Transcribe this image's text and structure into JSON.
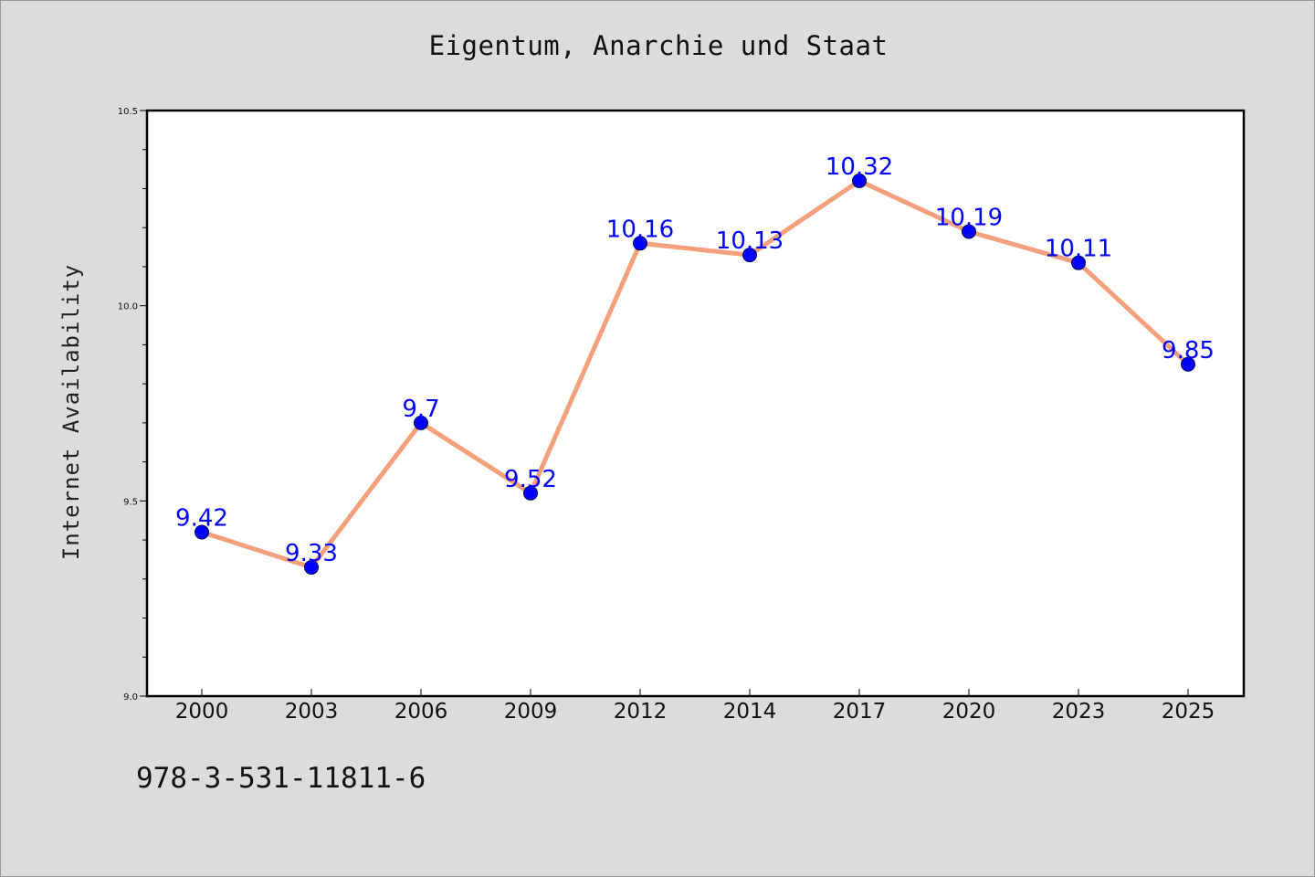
{
  "chart_data": {
    "type": "line",
    "title": "Eigentum, Anarchie und Staat",
    "ylabel": "Internet Availability",
    "xlabel": "",
    "categories": [
      "2000",
      "2003",
      "2006",
      "2009",
      "2012",
      "2014",
      "2017",
      "2020",
      "2023",
      "2025"
    ],
    "series": [
      {
        "values": [
          9.42,
          9.33,
          9.7,
          9.52,
          10.16,
          10.13,
          10.32,
          10.19,
          10.11,
          9.85
        ],
        "data_labels": [
          "9.42",
          "9.33",
          "9.7",
          "9.52",
          "10.16",
          "10.13",
          "10.32",
          "10.19",
          "10.11",
          "9.85"
        ]
      }
    ],
    "ylim": [
      9.0,
      10.5
    ],
    "yticks": [
      9.0,
      9.5,
      10.0,
      10.5
    ],
    "ytick_labels": [
      "9.0",
      "9.5",
      "10.0",
      "10.5"
    ],
    "grid": false,
    "legend": "none",
    "colors": {
      "line": "#f4a07c",
      "marker": "#0000ff",
      "label": "#0000ff",
      "plot_background": "#ffffff",
      "figure_background": "#dcdcdc"
    }
  },
  "footer": {
    "isbn": "978-3-531-11811-6"
  }
}
